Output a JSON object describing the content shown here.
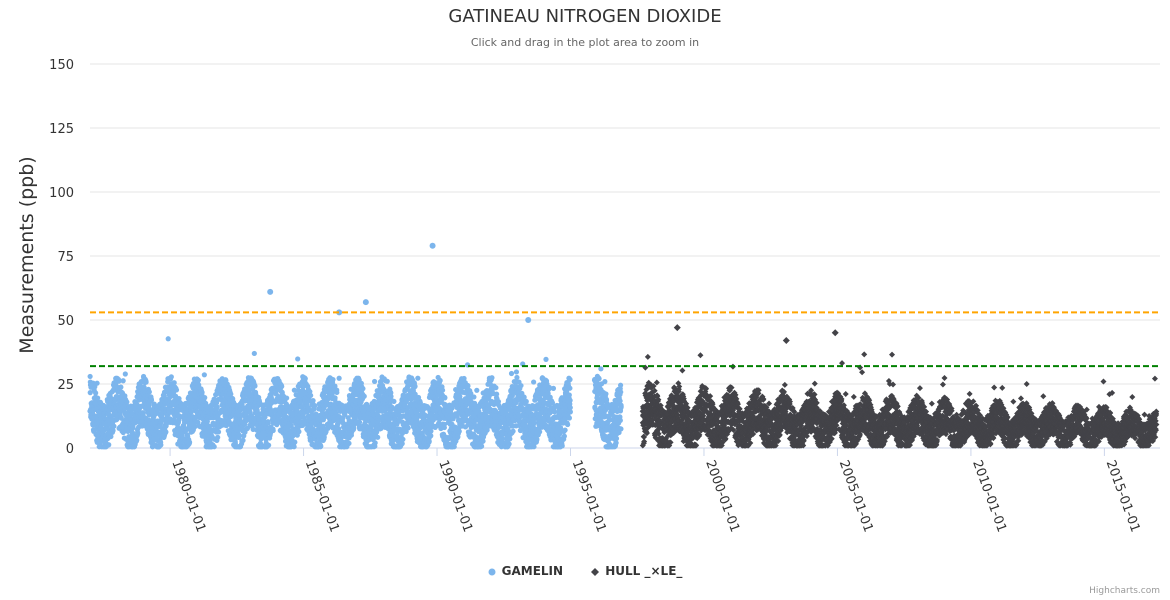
{
  "chart_data": {
    "type": "scatter",
    "title": "GATINEAU NITROGEN DIOXIDE",
    "subtitle": "Click and drag in the plot area to zoom in",
    "ylabel": "Measurements (ppb)",
    "xlabel": "",
    "ylim": [
      0,
      150
    ],
    "yticks": [
      0,
      25,
      50,
      75,
      100,
      125,
      150
    ],
    "xlim": [
      "1977-01-01",
      "2017-02-01"
    ],
    "xticks": [
      "1980-01-01",
      "1985-01-01",
      "1990-01-01",
      "1995-01-01",
      "2000-01-01",
      "2005-01-01",
      "2010-01-01",
      "2015-01-01"
    ],
    "thresholds": [
      {
        "value": 53,
        "color": "#FFA500",
        "style": "dashed"
      },
      {
        "value": 32,
        "color": "#008000",
        "style": "dashed"
      }
    ],
    "series": [
      {
        "name": "GAMELIN",
        "color": "#7CB5EC",
        "marker": "circle",
        "start": 1977.0,
        "end": 1996.9,
        "gaps": [
          [
            1995.0,
            1995.9
          ]
        ],
        "typical_range": [
          2,
          30
        ],
        "notable_points": [
          {
            "x": "1983-10-01",
            "y": 61
          },
          {
            "x": "1986-05-01",
            "y": 53
          },
          {
            "x": "1987-05-01",
            "y": 57
          },
          {
            "x": "1989-11-01",
            "y": 79
          },
          {
            "x": "1993-06-01",
            "y": 50
          }
        ]
      },
      {
        "name": "HULL _×LE_",
        "color": "#434348",
        "marker": "diamond",
        "start": 1997.7,
        "end": 2016.95,
        "typical_range": [
          1,
          28
        ],
        "notable_points": [
          {
            "x": "1999-01-01",
            "y": 47
          },
          {
            "x": "2004-12-01",
            "y": 45
          },
          {
            "x": "2003-02-01",
            "y": 42
          }
        ]
      }
    ]
  },
  "credits": "Highcharts.com"
}
